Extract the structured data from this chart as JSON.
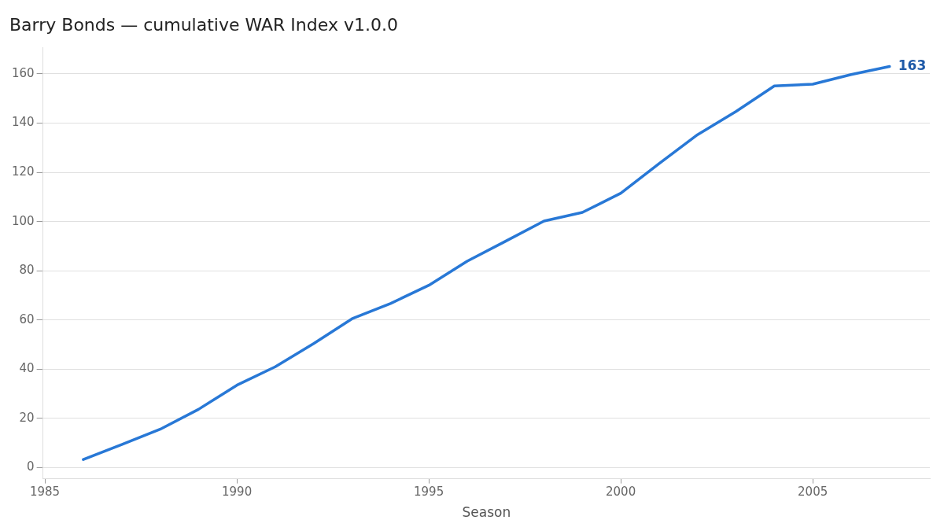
{
  "chart_data": {
    "type": "line",
    "title": "Barry Bonds — cumulative WAR Index v1.0.0",
    "xlabel": "Season",
    "x": [
      1986,
      1987,
      1988,
      1989,
      1990,
      1991,
      1992,
      1993,
      1994,
      1995,
      1996,
      1997,
      1998,
      1999,
      2000,
      2001,
      2002,
      2003,
      2004,
      2005,
      2006,
      2007
    ],
    "series": [
      {
        "color": "#2878d6",
        "values": [
          3.3,
          9.4,
          15.6,
          23.7,
          33.5,
          41,
          50.4,
          60.5,
          66.7,
          74.1,
          83.9,
          92,
          100.2,
          103.7,
          111.5,
          123.6,
          135.3,
          144.7,
          155.1,
          155.8,
          159.7,
          163
        ],
        "value_labels": [
          null,
          null,
          null,
          null,
          null,
          null,
          null,
          null,
          null,
          null,
          null,
          null,
          null,
          null,
          null,
          null,
          null,
          null,
          null,
          null,
          null,
          "163"
        ]
      }
    ],
    "xlim": [
      1984.95,
      2008.05
    ],
    "xticks": [
      1985,
      1990,
      1995,
      2000,
      2005
    ],
    "ylim": [
      -4.5,
      170.7
    ],
    "yticks": [
      0,
      20,
      40,
      60,
      80,
      100,
      120,
      140,
      160
    ],
    "grid": "y",
    "legend": false,
    "marker": "none",
    "line_style": "solid"
  }
}
